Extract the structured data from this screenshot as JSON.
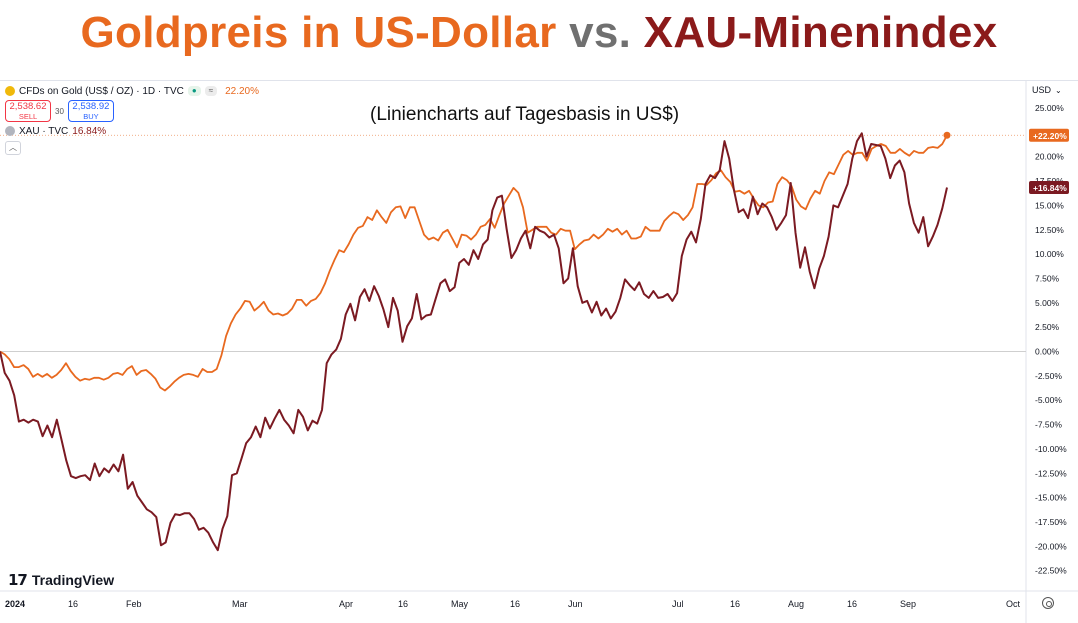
{
  "headline": {
    "gold_part": "Goldpreis in US-Dollar",
    "vs_part": "vs.",
    "xau_part": "XAU-Minenindex"
  },
  "subtitle": "(Liniencharts auf Tagesbasis in US$)",
  "legend": {
    "gold_symbol": "CFDs on Gold (US$ / OZ) · 1D · TVC",
    "gold_pct": "22.20%",
    "sell_price": "2,538.62",
    "sell_label": "SELL",
    "spread": "30",
    "buy_price": "2,538.92",
    "buy_label": "BUY",
    "xau_symbol": "XAU · TVC",
    "xau_pct": "16.84%"
  },
  "currency": "USD",
  "branding": "TradingView",
  "colors": {
    "gold": "#e8691f",
    "xau": "#7b1a22",
    "sell": "#f23645",
    "buy": "#2962ff"
  },
  "chart_data": {
    "type": "line",
    "yaxis": {
      "min": -22.5,
      "max": 25,
      "unit": "%",
      "ticks": [
        "25.00%",
        "22.50%",
        "20.00%",
        "17.50%",
        "15.00%",
        "12.50%",
        "10.00%",
        "7.50%",
        "5.00%",
        "2.50%",
        "0.00%",
        "-2.50%",
        "-5.00%",
        "-7.50%",
        "-10.00%",
        "-12.50%",
        "-15.00%",
        "-17.50%",
        "-20.00%",
        "-22.50%"
      ]
    },
    "xaxis": {
      "labels": [
        "2024",
        "16",
        "Feb",
        "Mar",
        "Apr",
        "16",
        "May",
        "16",
        "Jun",
        "Jul",
        "16",
        "Aug",
        "16",
        "Sep",
        "Oct"
      ]
    },
    "last_value_labels": [
      {
        "series": "gold",
        "text": "+22.20%"
      },
      {
        "series": "xau",
        "text": "+16.84%"
      }
    ],
    "series": [
      {
        "key": "gold",
        "values": [
          0,
          -0.3,
          -0.8,
          -1.6,
          -1.6,
          -1.4,
          -1.8,
          -2.6,
          -2.3,
          -2.6,
          -2.3,
          -2.7,
          -2.4,
          -1.9,
          -1.2,
          -2.0,
          -2.6,
          -3.0,
          -2.8,
          -2.9,
          -2.7,
          -2.7,
          -2.9,
          -2.7,
          -2.3,
          -2.2,
          -2.4,
          -1.8,
          -1.5,
          -2.4,
          -2.0,
          -1.9,
          -2.3,
          -2.8,
          -3.7,
          -4.0,
          -3.6,
          -3.1,
          -2.7,
          -2.4,
          -2.3,
          -2.4,
          -2.6,
          -1.8,
          -2.1,
          -2.1,
          -1.8,
          -0.4,
          1.6,
          2.9,
          3.8,
          4.4,
          5.2,
          5.1,
          4.2,
          4.6,
          5.1,
          4.2,
          3.8,
          3.9,
          3.7,
          3.9,
          4.4,
          5.3,
          5.3,
          4.7,
          5.2,
          5.4,
          6.0,
          7.0,
          8.3,
          9.4,
          10.4,
          10.2,
          11.0,
          12.0,
          12.7,
          12.9,
          13.8,
          13.5,
          14.5,
          13.8,
          13.2,
          14.3,
          14.8,
          14.9,
          13.7,
          14.8,
          14.8,
          13.4,
          12.0,
          11.5,
          11.7,
          11.4,
          12.2,
          12.5,
          11.6,
          10.7,
          12.0,
          11.9,
          11.5,
          12.0,
          12.8,
          13.0,
          13.6,
          12.7,
          14.0,
          15.2,
          16.0,
          16.8,
          16.3,
          14.8,
          12.2,
          12.5,
          12.8,
          12.8,
          12.8,
          12.2,
          12.0,
          12.6,
          12.4,
          12.4,
          10.5,
          11.0,
          11.4,
          11.5,
          12.0,
          11.6,
          12.0,
          12.6,
          12.3,
          12.6,
          12.0,
          12.4,
          11.6,
          11.6,
          11.8,
          12.8,
          12.4,
          12.4,
          12.4,
          13.4,
          13.9,
          14.3,
          14.1,
          13.5,
          14.0,
          14.8,
          17.2,
          17.2,
          17.1,
          17.6,
          18.3,
          18.6,
          17.9,
          17.4,
          16.4,
          16.5,
          16.2,
          16.5,
          15.7,
          15.0,
          14.8,
          15.3,
          15.4,
          17.2,
          17.9,
          17.6,
          17.0,
          15.6,
          14.9,
          14.6,
          15.7,
          16.5,
          16.2,
          17.5,
          18.4,
          18.2,
          19.2,
          20.2,
          20.6,
          20.2,
          20.4,
          20.4,
          19.6,
          20.8,
          21.1,
          21.3,
          21.1,
          20.4,
          20.4,
          20.8,
          20.4,
          20.1,
          20.6,
          20.4,
          20.4,
          20.9,
          21.0,
          20.9,
          21.3,
          22.2
        ]
      },
      {
        "key": "xau",
        "values": [
          0,
          -2.2,
          -3.0,
          -4.5,
          -7.2,
          -7.0,
          -7.3,
          -7.0,
          -7.2,
          -8.7,
          -7.6,
          -8.8,
          -7.0,
          -9.1,
          -11.2,
          -12.8,
          -13.0,
          -12.8,
          -12.7,
          -13.2,
          -11.5,
          -12.8,
          -12.0,
          -12.4,
          -11.6,
          -12.3,
          -10.6,
          -14.1,
          -13.4,
          -14.8,
          -15.5,
          -16.2,
          -16.5,
          -17.0,
          -19.9,
          -19.6,
          -17.6,
          -16.7,
          -16.8,
          -16.6,
          -16.6,
          -17.2,
          -18.3,
          -18.1,
          -18.6,
          -19.6,
          -20.4,
          -18.2,
          -16.9,
          -12.7,
          -12.5,
          -11.0,
          -9.4,
          -8.8,
          -7.7,
          -8.8,
          -6.8,
          -7.9,
          -6.9,
          -6.0,
          -7.0,
          -7.6,
          -8.4,
          -6.0,
          -6.7,
          -8.1,
          -7.1,
          -7.4,
          -6.0,
          -1.2,
          -0.3,
          0.2,
          1.3,
          3.8,
          4.9,
          3.2,
          5.6,
          6.4,
          5.2,
          6.7,
          5.7,
          4.3,
          2.5,
          5.5,
          4.2,
          1.0,
          2.6,
          3.4,
          5.9,
          3.3,
          3.7,
          3.8,
          5.4,
          7.0,
          7.4,
          6.2,
          6.6,
          9.1,
          9.5,
          8.9,
          10.4,
          9.5,
          11.0,
          11.5,
          14.5,
          15.8,
          16.0,
          12.6,
          9.6,
          10.4,
          11.6,
          12.4,
          10.6,
          12.8,
          12.4,
          12.2,
          11.7,
          12.0,
          10.6,
          7.0,
          7.5,
          10.6,
          6.7,
          5.0,
          5.2,
          4.0,
          5.1,
          3.7,
          4.4,
          3.4,
          4.1,
          5.5,
          7.4,
          6.8,
          6.3,
          7.1,
          5.9,
          5.5,
          6.2,
          5.5,
          5.6,
          5.9,
          5.2,
          6.0,
          9.8,
          11.5,
          12.3,
          11.2,
          13.6,
          17.2,
          18.1,
          17.8,
          18.6,
          21.6,
          19.8,
          16.6,
          14.3,
          14.6,
          13.7,
          15.9,
          14.1,
          15.2,
          14.8,
          13.8,
          12.5,
          13.2,
          14.0,
          17.3,
          12.2,
          8.6,
          10.7,
          8.2,
          6.5,
          8.5,
          9.8,
          11.8,
          15.0,
          14.8,
          16.0,
          17.2,
          19.8,
          21.6,
          22.4,
          20.0,
          21.3,
          21.2,
          21.1,
          19.8,
          17.8,
          19.1,
          19.6,
          18.4,
          15.2,
          13.2,
          12.2,
          13.8,
          10.8,
          11.8,
          13.0,
          14.7,
          16.84
        ]
      }
    ],
    "grid": false,
    "zero_line": true
  }
}
